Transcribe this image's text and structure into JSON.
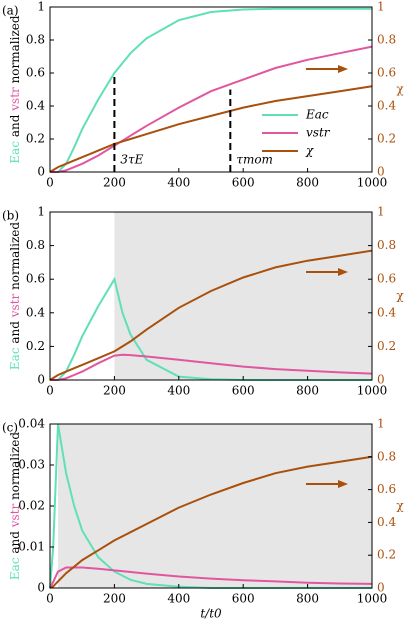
{
  "chart_data": [
    {
      "type": "line",
      "panel_label": "(a)",
      "ylabel": [
        {
          "text": "Eac",
          "color": "#5fe0b6"
        },
        {
          "text": " and "
        },
        {
          "text": "vstr",
          "color": "#e0579f"
        },
        {
          "text": " normalized"
        }
      ],
      "y2label": "χ",
      "x": [
        0,
        25,
        50,
        75,
        100,
        150,
        200,
        250,
        300,
        400,
        500,
        600,
        700,
        800,
        900,
        1000
      ],
      "series": [
        {
          "name": "Eac",
          "color": "#5fe0b6",
          "values": [
            0,
            0,
            0.05,
            0.15,
            0.26,
            0.44,
            0.6,
            0.72,
            0.81,
            0.92,
            0.97,
            0.985,
            0.99,
            0.99,
            0.99,
            0.99
          ]
        },
        {
          "name": "vstr",
          "color": "#e0579f",
          "values": [
            0,
            0,
            0.01,
            0.03,
            0.05,
            0.1,
            0.16,
            0.22,
            0.28,
            0.39,
            0.49,
            0.56,
            0.63,
            0.68,
            0.72,
            0.76
          ]
        },
        {
          "name": "χ",
          "color": "#a8500c",
          "axis": "y2",
          "values": [
            0,
            0.03,
            0.05,
            0.07,
            0.09,
            0.13,
            0.17,
            0.2,
            0.23,
            0.29,
            0.34,
            0.39,
            0.43,
            0.46,
            0.49,
            0.52
          ]
        }
      ],
      "xlim": [
        0,
        1000
      ],
      "xticks": [
        0,
        200,
        400,
        600,
        800,
        1000
      ],
      "ylim": [
        0,
        1
      ],
      "yticks": [
        0,
        0.2,
        0.4,
        0.6,
        0.8,
        1
      ],
      "y2lim": [
        0,
        1
      ],
      "y2ticks": [
        0,
        0.2,
        0.4,
        0.6,
        0.8,
        1
      ],
      "vlines": [
        {
          "x": 200,
          "y": 0.6,
          "label": "3τE"
        },
        {
          "x": 560,
          "y": 0.5,
          "label": "τmom"
        }
      ],
      "legend": "center right"
    },
    {
      "type": "line",
      "panel_label": "(b)",
      "ylabel": [
        {
          "text": "Eac",
          "color": "#5fe0b6"
        },
        {
          "text": " and "
        },
        {
          "text": "vstr",
          "color": "#e0579f"
        },
        {
          "text": " normalized"
        }
      ],
      "y2label": "χ",
      "x": [
        0,
        25,
        50,
        75,
        100,
        150,
        200,
        225,
        250,
        300,
        400,
        500,
        600,
        700,
        800,
        900,
        1000
      ],
      "series": [
        {
          "color": "#5fe0b6",
          "values": [
            0,
            0,
            0.05,
            0.15,
            0.26,
            0.44,
            0.6,
            0.4,
            0.27,
            0.12,
            0.02,
            0.005,
            0,
            0,
            0,
            0,
            0
          ]
        },
        {
          "color": "#e0579f",
          "values": [
            0,
            0,
            0.01,
            0.03,
            0.05,
            0.1,
            0.145,
            0.15,
            0.148,
            0.14,
            0.12,
            0.1,
            0.08,
            0.065,
            0.055,
            0.045,
            0.038
          ]
        },
        {
          "color": "#a8500c",
          "axis": "y2",
          "values": [
            0,
            0.03,
            0.05,
            0.07,
            0.09,
            0.13,
            0.17,
            0.2,
            0.23,
            0.3,
            0.43,
            0.53,
            0.61,
            0.67,
            0.71,
            0.74,
            0.77
          ]
        }
      ],
      "shade": [
        200,
        1000
      ],
      "xlim": [
        0,
        1000
      ],
      "xticks": [
        0,
        200,
        400,
        600,
        800,
        1000
      ],
      "ylim": [
        0,
        1
      ],
      "yticks": [
        0,
        0.2,
        0.4,
        0.6,
        0.8,
        1
      ],
      "y2lim": [
        0,
        1
      ],
      "y2ticks": [
        0,
        0.2,
        0.4,
        0.6,
        0.8,
        1
      ]
    },
    {
      "type": "line",
      "panel_label": "(c)",
      "ylabel": [
        {
          "text": "Eac",
          "color": "#5fe0b6"
        },
        {
          "text": " and "
        },
        {
          "text": "vstr",
          "color": "#e0579f"
        },
        {
          "text": " normalized"
        }
      ],
      "y2label": "χ",
      "xlabel": "t/t0",
      "x": [
        0,
        10,
        25,
        50,
        75,
        100,
        150,
        200,
        250,
        300,
        400,
        500,
        600,
        700,
        800,
        900,
        1000
      ],
      "series": [
        {
          "color": "#5fe0b6",
          "values": [
            0,
            0.01,
            0.04,
            0.028,
            0.02,
            0.014,
            0.0075,
            0.004,
            0.002,
            0.001,
            0.0003,
            0,
            0,
            0,
            0,
            0,
            0
          ]
        },
        {
          "color": "#e0579f",
          "values": [
            0,
            0.0015,
            0.004,
            0.005,
            0.005,
            0.005,
            0.0047,
            0.0043,
            0.0039,
            0.0035,
            0.0028,
            0.0023,
            0.0019,
            0.0016,
            0.0013,
            0.0011,
            0.001
          ]
        },
        {
          "color": "#a8500c",
          "axis": "y2",
          "values": [
            0,
            0.01,
            0.04,
            0.09,
            0.13,
            0.17,
            0.23,
            0.29,
            0.34,
            0.39,
            0.49,
            0.57,
            0.64,
            0.7,
            0.74,
            0.77,
            0.8
          ]
        }
      ],
      "shade": [
        25,
        1000
      ],
      "xlim": [
        0,
        1000
      ],
      "xticks": [
        0,
        200,
        400,
        600,
        800,
        1000
      ],
      "ylim": [
        0,
        0.04
      ],
      "yticks": [
        0,
        0.01,
        0.02,
        0.03,
        0.04
      ],
      "y2lim": [
        0,
        1
      ],
      "y2ticks": [
        0,
        0.2,
        0.4,
        0.6,
        0.8,
        1
      ]
    }
  ]
}
